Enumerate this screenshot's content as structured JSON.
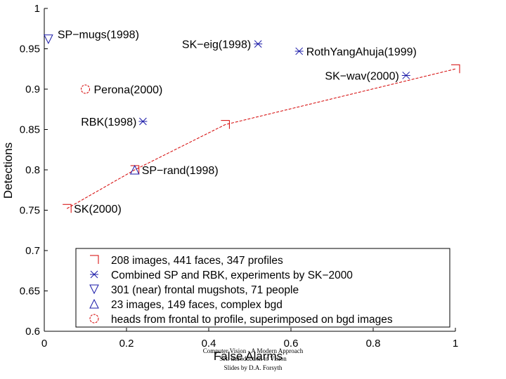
{
  "chart_data": {
    "type": "scatter",
    "xlabel": "False Alarms",
    "ylabel": "Detections",
    "xlim": [
      0,
      1
    ],
    "ylim": [
      0.6,
      1
    ],
    "xticks": [
      "0",
      "0.2",
      "0.4",
      "0.6",
      "0.8",
      "1"
    ],
    "yticks": [
      "0.6",
      "0.65",
      "0.7",
      "0.75",
      "0.8",
      "0.85",
      "0.9",
      "0.95",
      "1"
    ],
    "grid": false,
    "legend_position": "bottom-right",
    "series": [
      {
        "name": "208 images, 441 faces, 347 profiles",
        "marker": "corner",
        "color": "#d40000",
        "connected": true,
        "points": [
          {
            "x": 0.055,
            "y": 0.752,
            "label": "SK(2000)"
          },
          {
            "x": 0.22,
            "y": 0.8,
            "label": ""
          },
          {
            "x": 0.44,
            "y": 0.856,
            "label": ""
          },
          {
            "x": 1.0,
            "y": 0.925,
            "label": ""
          }
        ]
      },
      {
        "name": "Combined SP and RBK, experiments by SK−2000",
        "marker": "star",
        "color": "#1a1aa8",
        "connected": false,
        "points": [
          {
            "x": 0.24,
            "y": 0.86,
            "label": "RBK(1998)"
          },
          {
            "x": 0.52,
            "y": 0.956,
            "label": "SK−eig(1998)"
          },
          {
            "x": 0.62,
            "y": 0.947,
            "label": "RothYangAhuja(1999)"
          },
          {
            "x": 0.88,
            "y": 0.917,
            "label": "SK−wav(2000)"
          }
        ]
      },
      {
        "name": "301 (near) frontal mugshots, 71 people",
        "marker": "triangle-down",
        "color": "#1a1aa8",
        "connected": false,
        "points": [
          {
            "x": 0.01,
            "y": 0.962,
            "label": "SP−mugs(1998)"
          }
        ]
      },
      {
        "name": "23 images, 149 faces, complex bgd",
        "marker": "triangle-up",
        "color": "#1a1aa8",
        "connected": false,
        "points": [
          {
            "x": 0.22,
            "y": 0.8,
            "label": "SP−rand(1998)"
          }
        ]
      },
      {
        "name": "heads from frontal to profile, superimposed on bgd images",
        "marker": "circle",
        "color": "#d40000",
        "connected": false,
        "points": [
          {
            "x": 0.1,
            "y": 0.9,
            "label": "Perona(2000)"
          }
        ]
      }
    ]
  },
  "footer": {
    "line1": "Computer Vision - A Modern Approach",
    "line2": "Set: Introduction to Vision",
    "line3": "Slides by D.A. Forsyth"
  }
}
